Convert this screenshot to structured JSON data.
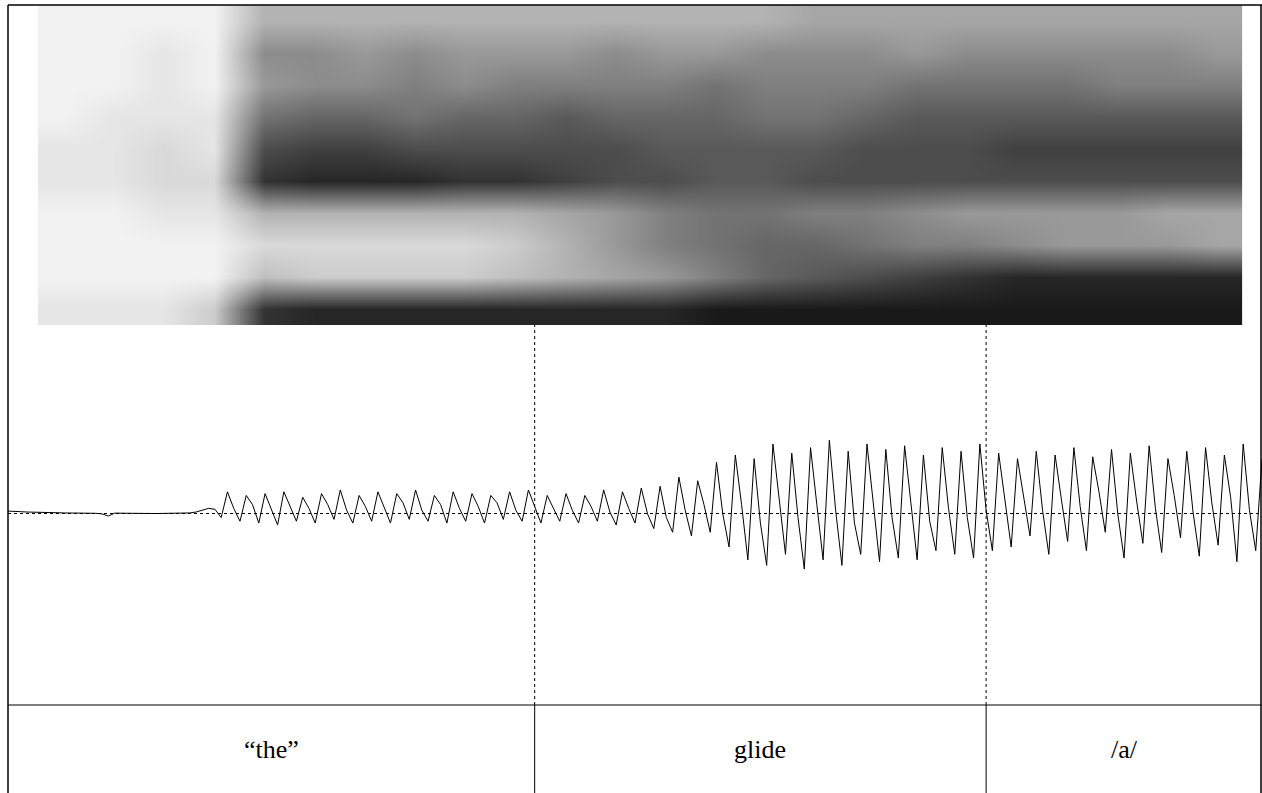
{
  "chart_data": {
    "type": "spectrogram_waveform",
    "xlim": [
      0,
      1
    ],
    "tick_labels": false,
    "segments": [
      {
        "label": "“the”",
        "start": 0,
        "end": 0.42
      },
      {
        "label": "glide",
        "start": 0.42,
        "end": 0.78
      },
      {
        "label": "/a/",
        "start": 0.78,
        "end": 1
      }
    ],
    "spectrogram": {
      "x": [
        0.044,
        0.084,
        0.124,
        0.164,
        0.204,
        0.244,
        0.284,
        0.324,
        0.364,
        0.404,
        0.444,
        0.484,
        0.524,
        0.564,
        0.604,
        0.644,
        0.684,
        0.724,
        0.764,
        0.804,
        0.844,
        0.884,
        0.924,
        0.964
      ],
      "rows": [
        [
          0.1,
          0.1,
          0.1,
          0.2,
          0.8,
          0.85,
          0.85,
          0.85,
          0.85,
          0.85,
          0.85,
          0.85,
          0.85,
          0.9,
          0.9,
          0.9,
          0.9,
          0.9,
          0.9,
          0.9,
          0.9,
          0.9,
          0.9,
          0.9
        ],
        [
          0.05,
          0.05,
          0.05,
          0.05,
          0.25,
          0.2,
          0.2,
          0.2,
          0.2,
          0.25,
          0.3,
          0.35,
          0.4,
          0.5,
          0.6,
          0.65,
          0.7,
          0.75,
          0.8,
          0.85,
          0.85,
          0.85,
          0.85,
          0.85
        ],
        [
          0.05,
          0.05,
          0.05,
          0.05,
          0.15,
          0.15,
          0.15,
          0.15,
          0.15,
          0.2,
          0.3,
          0.4,
          0.5,
          0.55,
          0.6,
          0.6,
          0.55,
          0.5,
          0.5,
          0.45,
          0.4,
          0.4,
          0.4,
          0.35
        ],
        [
          0.05,
          0.05,
          0.1,
          0.1,
          0.3,
          0.3,
          0.3,
          0.3,
          0.3,
          0.3,
          0.35,
          0.4,
          0.5,
          0.55,
          0.55,
          0.5,
          0.5,
          0.45,
          0.4,
          0.4,
          0.4,
          0.4,
          0.35,
          0.35
        ],
        [
          0.1,
          0.1,
          0.15,
          0.15,
          0.8,
          0.85,
          0.85,
          0.85,
          0.8,
          0.8,
          0.75,
          0.7,
          0.7,
          0.65,
          0.65,
          0.7,
          0.7,
          0.7,
          0.7,
          0.7,
          0.7,
          0.7,
          0.7,
          0.7
        ],
        [
          0.1,
          0.1,
          0.15,
          0.1,
          0.7,
          0.75,
          0.75,
          0.7,
          0.7,
          0.7,
          0.7,
          0.7,
          0.65,
          0.65,
          0.65,
          0.65,
          0.7,
          0.7,
          0.7,
          0.75,
          0.75,
          0.75,
          0.75,
          0.75
        ],
        [
          0.05,
          0.1,
          0.1,
          0.1,
          0.55,
          0.6,
          0.6,
          0.55,
          0.6,
          0.6,
          0.65,
          0.6,
          0.6,
          0.6,
          0.55,
          0.55,
          0.6,
          0.65,
          0.65,
          0.65,
          0.65,
          0.65,
          0.65,
          0.65
        ],
        [
          0.05,
          0.05,
          0.1,
          0.05,
          0.4,
          0.45,
          0.45,
          0.5,
          0.45,
          0.5,
          0.5,
          0.5,
          0.5,
          0.55,
          0.5,
          0.5,
          0.5,
          0.55,
          0.55,
          0.55,
          0.55,
          0.5,
          0.5,
          0.5
        ],
        [
          0.05,
          0.05,
          0.1,
          0.05,
          0.45,
          0.45,
          0.4,
          0.45,
          0.4,
          0.4,
          0.4,
          0.45,
          0.4,
          0.4,
          0.45,
          0.45,
          0.45,
          0.4,
          0.45,
          0.45,
          0.45,
          0.45,
          0.45,
          0.4
        ],
        [
          0.05,
          0.05,
          0.05,
          0.05,
          0.3,
          0.3,
          0.3,
          0.3,
          0.3,
          0.3,
          0.3,
          0.3,
          0.3,
          0.3,
          0.3,
          0.35,
          0.35,
          0.35,
          0.35,
          0.35,
          0.35,
          0.35,
          0.35,
          0.35
        ]
      ],
      "zlim": [
        0,
        1
      ]
    },
    "waveform": {
      "color": "#000000",
      "grid": true,
      "ylim": [
        -1,
        1
      ],
      "yticks": [
        0
      ],
      "x": [
        0,
        0.005,
        0.01,
        0.015,
        0.02,
        0.025,
        0.03,
        0.035,
        0.04,
        0.045,
        0.05,
        0.055,
        0.06,
        0.065,
        0.07,
        0.075,
        0.08,
        0.085,
        0.09,
        0.095,
        0.1,
        0.105,
        0.11,
        0.115,
        0.12,
        0.125,
        0.13,
        0.135,
        0.14,
        0.145,
        0.15,
        0.155,
        0.16,
        0.165,
        0.17,
        0.175,
        0.18,
        0.185,
        0.19,
        0.195,
        0.2,
        0.205,
        0.21,
        0.215,
        0.22,
        0.225,
        0.23,
        0.235,
        0.24,
        0.245,
        0.25,
        0.255,
        0.26,
        0.265,
        0.27,
        0.275,
        0.28,
        0.285,
        0.29,
        0.295,
        0.3,
        0.305,
        0.31,
        0.315,
        0.32,
        0.325,
        0.33,
        0.335,
        0.34,
        0.345,
        0.35,
        0.355,
        0.36,
        0.365,
        0.37,
        0.375,
        0.38,
        0.385,
        0.39,
        0.395,
        0.4,
        0.405,
        0.41,
        0.415,
        0.42,
        0.425,
        0.43,
        0.435,
        0.44,
        0.445,
        0.45,
        0.455,
        0.46,
        0.465,
        0.47,
        0.475,
        0.48,
        0.485,
        0.49,
        0.495,
        0.5,
        0.505,
        0.51,
        0.515,
        0.52,
        0.525,
        0.53,
        0.535,
        0.54,
        0.545,
        0.55,
        0.555,
        0.56,
        0.565,
        0.57,
        0.575,
        0.58,
        0.585,
        0.59,
        0.595,
        0.6,
        0.605,
        0.61,
        0.615,
        0.62,
        0.625,
        0.63,
        0.635,
        0.64,
        0.645,
        0.65,
        0.655,
        0.66,
        0.665,
        0.67,
        0.675,
        0.68,
        0.685,
        0.69,
        0.695,
        0.7,
        0.705,
        0.71,
        0.715,
        0.72,
        0.725,
        0.73,
        0.735,
        0.74,
        0.745,
        0.75,
        0.755,
        0.76,
        0.765,
        0.77,
        0.775,
        0.78,
        0.785,
        0.79,
        0.795,
        0.8,
        0.805,
        0.81,
        0.815,
        0.82,
        0.825,
        0.83,
        0.835,
        0.84,
        0.845,
        0.85,
        0.855,
        0.86,
        0.865,
        0.87,
        0.875,
        0.88,
        0.885,
        0.89,
        0.895,
        0.9,
        0.905,
        0.91,
        0.915,
        0.92,
        0.925,
        0.93,
        0.935,
        0.94,
        0.945,
        0.95,
        0.955,
        0.96,
        0.965,
        0.97,
        0.975,
        0.98,
        0.985,
        0.99,
        0.995,
        1
      ],
      "values": [
        0.015,
        0.015,
        0.012,
        0.01,
        0.01,
        0.008,
        0.008,
        0.006,
        0.006,
        0.005,
        0.005,
        0.004,
        0.004,
        0.003,
        0.003,
        0.0,
        -0.012,
        0.004,
        0.003,
        0.003,
        0.003,
        0.003,
        0.002,
        0.002,
        0.002,
        0.002,
        0.002,
        0.002,
        0.003,
        0.005,
        0.01,
        0.02,
        0.03,
        0.025,
        -0.02,
        0.12,
        0.03,
        -0.04,
        0.1,
        0.05,
        -0.05,
        0.11,
        0.02,
        -0.06,
        0.12,
        0.04,
        -0.04,
        0.09,
        0.03,
        -0.05,
        0.11,
        0.05,
        -0.03,
        0.13,
        0.02,
        -0.05,
        0.1,
        0.04,
        -0.04,
        0.12,
        0.03,
        -0.05,
        0.11,
        0.06,
        -0.03,
        0.13,
        0.02,
        -0.04,
        0.1,
        0.05,
        -0.05,
        0.12,
        0.03,
        -0.04,
        0.11,
        0.04,
        -0.05,
        0.1,
        0.06,
        -0.03,
        0.12,
        0.02,
        -0.04,
        0.13,
        0.04,
        -0.05,
        0.1,
        0.03,
        -0.04,
        0.11,
        0.02,
        -0.05,
        0.1,
        0.04,
        -0.04,
        0.13,
        0.01,
        -0.06,
        0.12,
        0.03,
        -0.05,
        0.14,
        0.0,
        -0.08,
        0.15,
        -0.02,
        -0.1,
        0.2,
        0.02,
        -0.12,
        0.18,
        0.05,
        -0.1,
        0.28,
        0.0,
        -0.18,
        0.32,
        0.05,
        -0.25,
        0.3,
        -0.05,
        -0.28,
        0.38,
        0.08,
        -0.22,
        0.33,
        -0.02,
        -0.3,
        0.36,
        0.05,
        -0.25,
        0.4,
        0.02,
        -0.28,
        0.34,
        -0.05,
        -0.22,
        0.38,
        0.04,
        -0.26,
        0.35,
        -0.02,
        -0.24,
        0.37,
        0.06,
        -0.25,
        0.32,
        -0.04,
        -0.2,
        0.36,
        0.03,
        -0.22,
        0.34,
        -0.02,
        -0.24,
        0.38,
        0.02,
        -0.2,
        0.33,
        0.06,
        -0.18,
        0.3,
        0.1,
        -0.12,
        0.34,
        0.02,
        -0.22,
        0.32,
        0.08,
        -0.15,
        0.36,
        0.04,
        -0.2,
        0.31,
        0.12,
        -0.1,
        0.35,
        0.0,
        -0.24,
        0.33,
        0.07,
        -0.16,
        0.37,
        0.03,
        -0.21,
        0.3,
        0.1,
        -0.13,
        0.34,
        0.01,
        -0.23,
        0.36,
        0.06,
        -0.17,
        0.32,
        0.09,
        -0.26,
        0.38,
        0.02,
        -0.2,
        0.3
      ]
    }
  }
}
